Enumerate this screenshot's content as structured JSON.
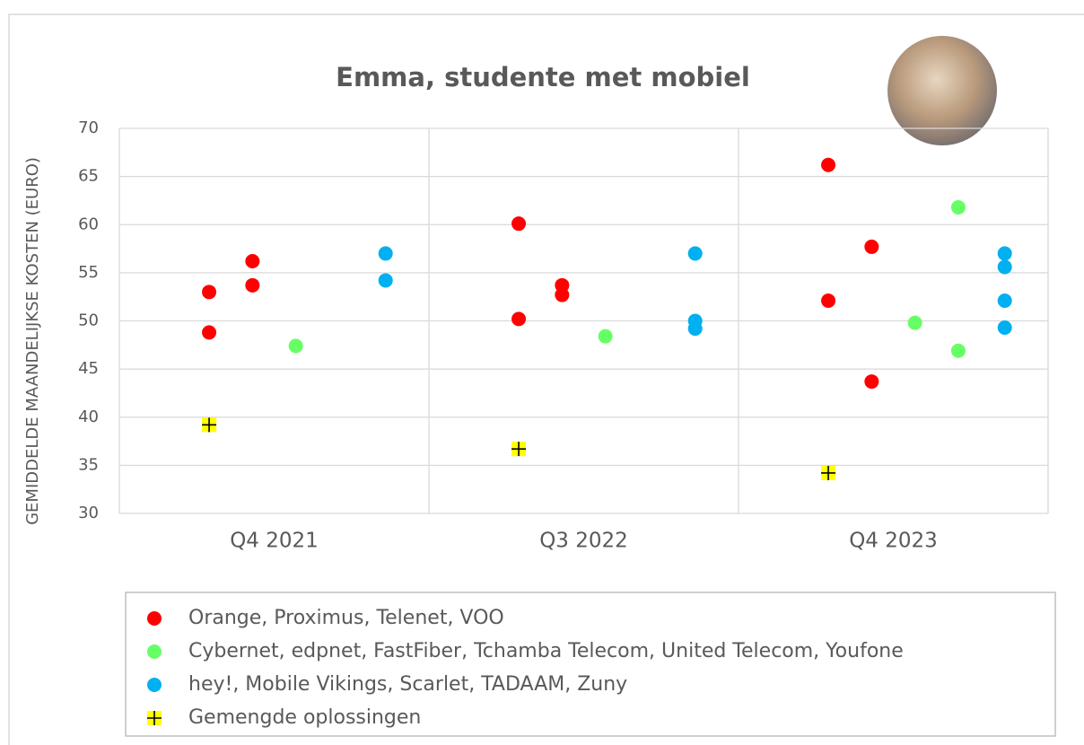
{
  "chart_data": {
    "type": "scatter",
    "title": "Emma, studente met mobiel",
    "y_label": "GEMIDDELDE MAANDELIJKSE KOSTEN (EURO)",
    "xlim": [
      0,
      3
    ],
    "xticks": [
      {
        "value": 0.5,
        "label": "Q4 2021"
      },
      {
        "value": 1.5,
        "label": "Q3 2022"
      },
      {
        "value": 2.5,
        "label": "Q4 2023"
      }
    ],
    "ylim": [
      30,
      70
    ],
    "yticks": [
      30,
      35,
      40,
      45,
      50,
      55,
      60,
      65,
      70
    ],
    "grid": true,
    "series": [
      {
        "name": "Orange, Proximus, Telenet, VOO",
        "color": "#ff0000",
        "marker": "circle",
        "x": [
          0.29,
          0.29,
          0.43,
          0.43,
          1.29,
          1.29,
          1.43,
          1.43,
          2.29,
          2.29,
          2.43,
          2.43
        ],
        "values": [
          53.0,
          48.8,
          56.2,
          53.7,
          60.1,
          50.2,
          53.7,
          52.7,
          66.2,
          52.1,
          57.7,
          43.7
        ]
      },
      {
        "name": "Cybernet, edpnet, FastFiber, Tchamba Telecom, United Telecom, Youfone",
        "color": "#66ff66",
        "marker": "circle",
        "x": [
          0.57,
          1.57,
          2.57,
          2.71,
          2.71
        ],
        "values": [
          47.4,
          48.4,
          49.8,
          61.8,
          46.9
        ]
      },
      {
        "name": "hey!, Mobile Vikings, Scarlet, TADAAM, Zuny",
        "color": "#00b0f0",
        "marker": "circle",
        "x": [
          0.86,
          0.86,
          1.86,
          1.86,
          1.86,
          2.86,
          2.86,
          2.86,
          2.86
        ],
        "values": [
          57.0,
          54.2,
          57.0,
          50.0,
          49.2,
          57.0,
          55.6,
          52.1,
          49.3
        ]
      },
      {
        "name": "Gemengde oplossingen",
        "color": "#ffff00",
        "marker": "plus",
        "x": [
          0.29,
          1.29,
          2.29
        ],
        "values": [
          39.2,
          36.7,
          34.2
        ]
      }
    ]
  }
}
